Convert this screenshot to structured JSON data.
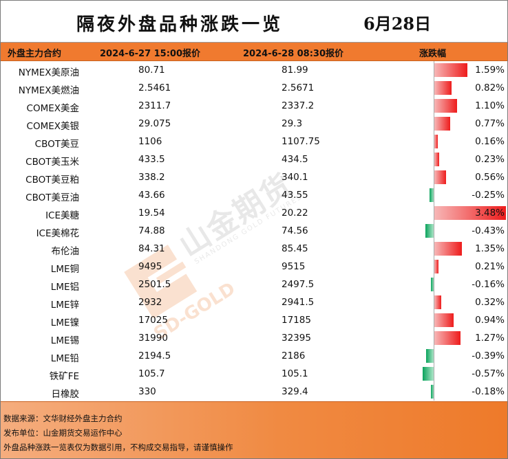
{
  "title": "隔夜外盘品种涨跌一览",
  "date": "6月28日",
  "header": {
    "col_contract": "外盘主力合约",
    "col_prev": "2024-6-27 15:00报价",
    "col_curr": "2024-6-28 08:30报价",
    "col_change": "涨跌幅"
  },
  "rows": [
    {
      "name": "NYMEX美原油",
      "prev": "80.71",
      "curr": "81.99",
      "pct": "1.59%",
      "change": 1.59
    },
    {
      "name": "NYMEX美燃油",
      "prev": "2.5461",
      "curr": "2.5671",
      "pct": "0.82%",
      "change": 0.82
    },
    {
      "name": "COMEX美金",
      "prev": "2311.7",
      "curr": "2337.2",
      "pct": "1.10%",
      "change": 1.1
    },
    {
      "name": "COMEX美银",
      "prev": "29.075",
      "curr": "29.3",
      "pct": "0.77%",
      "change": 0.77
    },
    {
      "name": "CBOT美豆",
      "prev": "1106",
      "curr": "1107.75",
      "pct": "0.16%",
      "change": 0.16
    },
    {
      "name": "CBOT美玉米",
      "prev": "433.5",
      "curr": "434.5",
      "pct": "0.23%",
      "change": 0.23
    },
    {
      "name": "CBOT美豆粕",
      "prev": "338.2",
      "curr": "340.1",
      "pct": "0.56%",
      "change": 0.56
    },
    {
      "name": "CBOT美豆油",
      "prev": "43.66",
      "curr": "43.55",
      "pct": "-0.25%",
      "change": -0.25
    },
    {
      "name": "ICE美糖",
      "prev": "19.54",
      "curr": "20.22",
      "pct": "3.48%",
      "change": 3.48
    },
    {
      "name": "ICE美棉花",
      "prev": "74.88",
      "curr": "74.56",
      "pct": "-0.43%",
      "change": -0.43
    },
    {
      "name": "布伦油",
      "prev": "84.31",
      "curr": "85.45",
      "pct": "1.35%",
      "change": 1.35
    },
    {
      "name": "LME铜",
      "prev": "9495",
      "curr": "9515",
      "pct": "0.21%",
      "change": 0.21
    },
    {
      "name": "LME铝",
      "prev": "2501.5",
      "curr": "2497.5",
      "pct": "-0.16%",
      "change": -0.16
    },
    {
      "name": "LME锌",
      "prev": "2932",
      "curr": "2941.5",
      "pct": "0.32%",
      "change": 0.32
    },
    {
      "name": "LME镍",
      "prev": "17025",
      "curr": "17185",
      "pct": "0.94%",
      "change": 0.94
    },
    {
      "name": "LME锡",
      "prev": "31990",
      "curr": "32395",
      "pct": "1.27%",
      "change": 1.27
    },
    {
      "name": "LME铅",
      "prev": "2194.5",
      "curr": "2186",
      "pct": "-0.39%",
      "change": -0.39
    },
    {
      "name": "铁矿FE",
      "prev": "105.7",
      "curr": "105.1",
      "pct": "-0.57%",
      "change": -0.57
    },
    {
      "name": "日橡胶",
      "prev": "330",
      "curr": "329.4",
      "pct": "-0.18%",
      "change": -0.18
    }
  ],
  "footer": {
    "source": "数据来源：文华财经外盘主力合约",
    "publisher": "发布单位：山金期货交易运作中心",
    "disclaimer": "外盘品种涨跌一览表仅为数据引用，不构成交易指导，请谨慎操作"
  },
  "watermark": {
    "logo_text": "山金期货",
    "logo_sub": "SHANDONG GOLD FUTURES",
    "logo_mark": "SD-GOLD"
  },
  "colors": {
    "header_orange": "#f07a2f",
    "rise_red": "#ee1c1c",
    "fall_green": "#0aa35c"
  }
}
